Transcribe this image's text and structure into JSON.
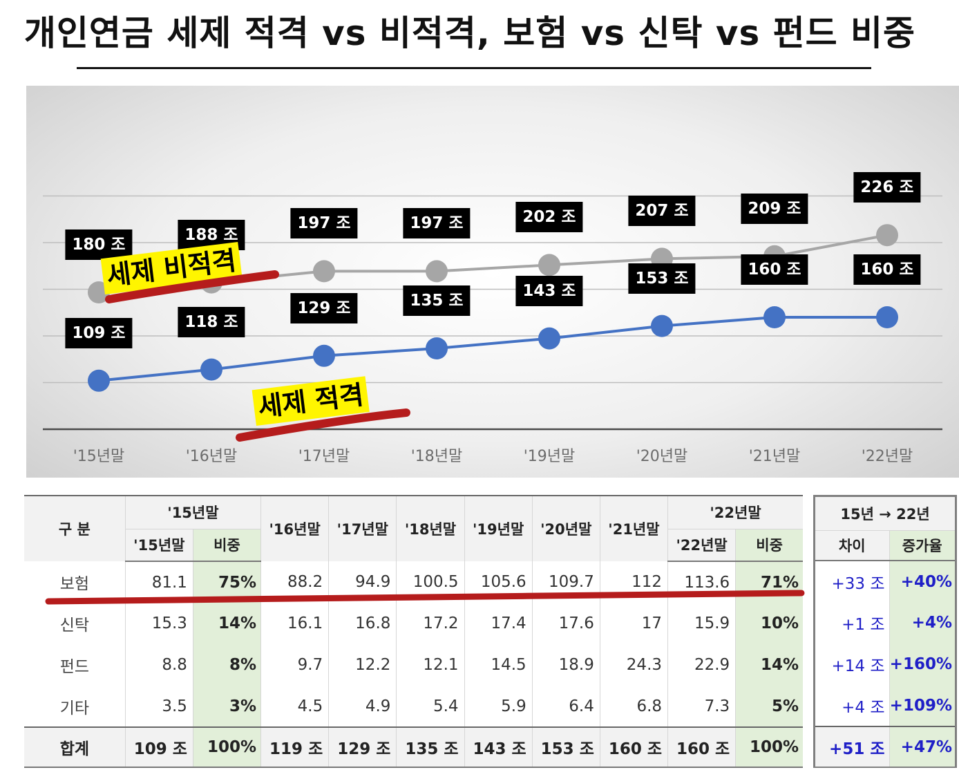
{
  "title": "개인연금 세제 적격 vs 비적격, 보험 vs 신탁 vs 펀드 비중",
  "chart_data": {
    "type": "line",
    "categories": [
      "'15년말",
      "'16년말",
      "'17년말",
      "'18년말",
      "'19년말",
      "'20년말",
      "'21년말",
      "'22년말"
    ],
    "series": [
      {
        "name": "세제 비적격",
        "values": [
          180,
          188,
          197,
          197,
          202,
          207,
          209,
          226
        ],
        "labels": [
          "180 조",
          "188 조",
          "197 조",
          "197 조",
          "202 조",
          "207 조",
          "209 조",
          "226 조"
        ],
        "color": "#a6a6a6"
      },
      {
        "name": "세제 적격",
        "values": [
          109,
          118,
          129,
          135,
          143,
          153,
          160,
          160
        ],
        "labels": [
          "109 조",
          "118 조",
          "129 조",
          "135 조",
          "143 조",
          "153 조",
          "160 조",
          "160 조"
        ],
        "color": "#4472c4"
      }
    ],
    "ylim": [
      70,
      240
    ],
    "grid": true
  },
  "table": {
    "corner": "구 분",
    "group_15": "'15년말",
    "group_22": "'22년말",
    "sub_15": "'15년말",
    "sub_share": "비중",
    "sub_22": "'22년말",
    "sub_share2": "비중",
    "years": [
      "'16년말",
      "'17년말",
      "'18년말",
      "'19년말",
      "'20년말",
      "'21년말"
    ],
    "rows": [
      {
        "label": "보험",
        "v15": "81.1",
        "s15": "75%",
        "mid": [
          "88.2",
          "94.9",
          "100.5",
          "105.6",
          "109.7",
          "112"
        ],
        "v22": "113.6",
        "s22": "71%"
      },
      {
        "label": "신탁",
        "v15": "15.3",
        "s15": "14%",
        "mid": [
          "16.1",
          "16.8",
          "17.2",
          "17.4",
          "17.6",
          "17"
        ],
        "v22": "15.9",
        "s22": "10%"
      },
      {
        "label": "펀드",
        "v15": "8.8",
        "s15": "8%",
        "mid": [
          "9.7",
          "12.2",
          "12.1",
          "14.5",
          "18.9",
          "24.3"
        ],
        "v22": "22.9",
        "s22": "14%"
      },
      {
        "label": "기타",
        "v15": "3.5",
        "s15": "3%",
        "mid": [
          "4.5",
          "4.9",
          "5.4",
          "5.9",
          "6.4",
          "6.8"
        ],
        "v22": "7.3",
        "s22": "5%"
      }
    ],
    "total": {
      "label": "합계",
      "v15": "109 조",
      "s15": "100%",
      "mid": [
        "119 조",
        "129 조",
        "135 조",
        "143 조",
        "153 조",
        "160 조"
      ],
      "v22": "160 조",
      "s22": "100%"
    }
  },
  "change": {
    "header": "15년 → 22년",
    "col_diff": "차이",
    "col_rate": "증가율",
    "rows": [
      {
        "diff": "+33 조",
        "rate": "+40%"
      },
      {
        "diff": "+1 조",
        "rate": "+4%"
      },
      {
        "diff": "+14 조",
        "rate": "+160%"
      },
      {
        "diff": "+4 조",
        "rate": "+109%"
      }
    ],
    "total": {
      "diff": "+51 조",
      "rate": "+47%"
    }
  }
}
